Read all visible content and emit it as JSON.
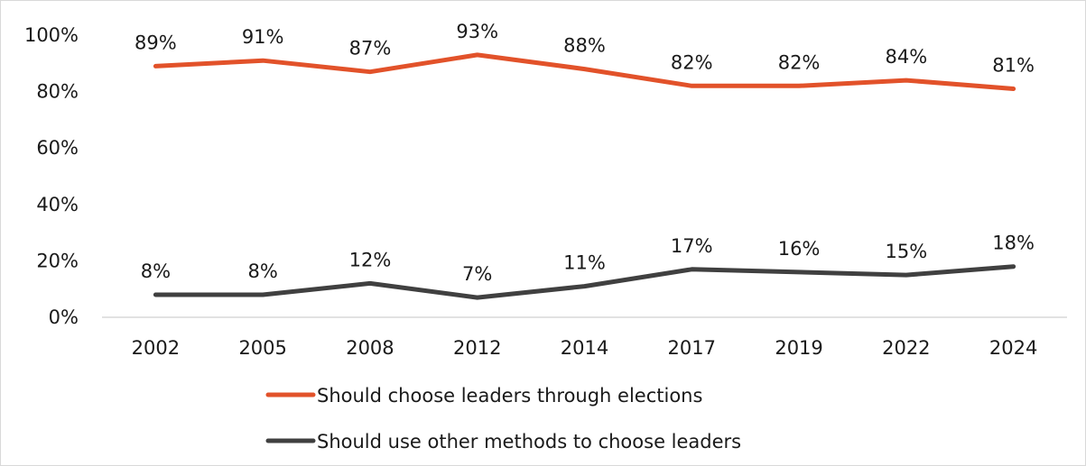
{
  "chart_data": {
    "type": "line",
    "categories": [
      "2002",
      "2005",
      "2008",
      "2012",
      "2014",
      "2017",
      "2019",
      "2022",
      "2024"
    ],
    "series": [
      {
        "name": "Should choose leaders through elections",
        "values": [
          89,
          91,
          87,
          93,
          88,
          82,
          82,
          84,
          81
        ],
        "labels": [
          "89%",
          "91%",
          "87%",
          "93%",
          "88%",
          "82%",
          "82%",
          "84%",
          "81%"
        ],
        "color": "#e2522a"
      },
      {
        "name": "Should use other methods to choose leaders",
        "values": [
          8,
          8,
          12,
          7,
          11,
          17,
          16,
          15,
          18
        ],
        "labels": [
          "8%",
          "8%",
          "12%",
          "7%",
          "11%",
          "17%",
          "16%",
          "15%",
          "18%"
        ],
        "color": "#404040"
      }
    ],
    "y_ticks": [
      0,
      20,
      40,
      60,
      80,
      100
    ],
    "y_tick_labels": [
      "0%",
      "20%",
      "40%",
      "60%",
      "80%",
      "100%"
    ],
    "ylim": [
      0,
      100
    ],
    "grid": false,
    "legend_position": "bottom",
    "axis_color": "#d9d9d9"
  }
}
